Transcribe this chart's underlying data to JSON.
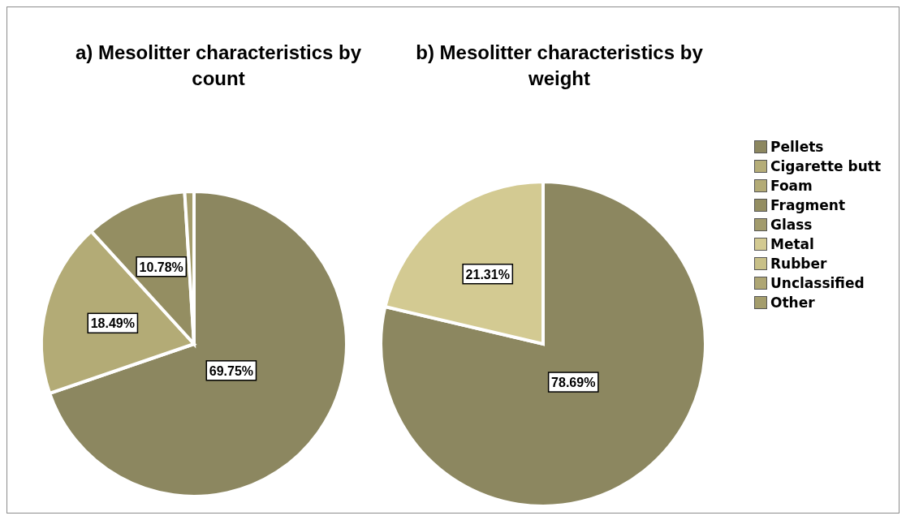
{
  "chart_data": [
    {
      "type": "pie",
      "title": "a)   Mesolitter characteristics by count",
      "categories": [
        null,
        null,
        null,
        null
      ],
      "values": [
        69.75,
        18.49,
        10.78,
        0.98
      ],
      "colors": [
        "#8c8760",
        "#b3ab76",
        "#948e62",
        "#a49d6c"
      ],
      "value_labels": [
        "69.75%",
        "18.49%",
        "10.78%",
        null
      ]
    },
    {
      "type": "pie",
      "title": "b)   Mesolitter characteristics by weight",
      "categories": [
        "Pellets",
        "Cigarette butt",
        "Foam",
        "Fragment",
        "Glass",
        "Metal",
        "Rubber",
        "Unclassified",
        "Other"
      ],
      "values": [
        78.69,
        0,
        0,
        0,
        0,
        21.31,
        0,
        0,
        0
      ],
      "colors": [
        "#8c8760",
        "#b5ad78",
        "#b3ab76",
        "#948e62",
        "#a29b6c",
        "#d3ca92",
        "#c8c088",
        "#aea674",
        "#a49d6c"
      ],
      "value_labels": [
        "78.69%",
        null,
        null,
        null,
        null,
        "21.31%",
        null,
        null,
        null
      ],
      "legend": "right"
    }
  ]
}
